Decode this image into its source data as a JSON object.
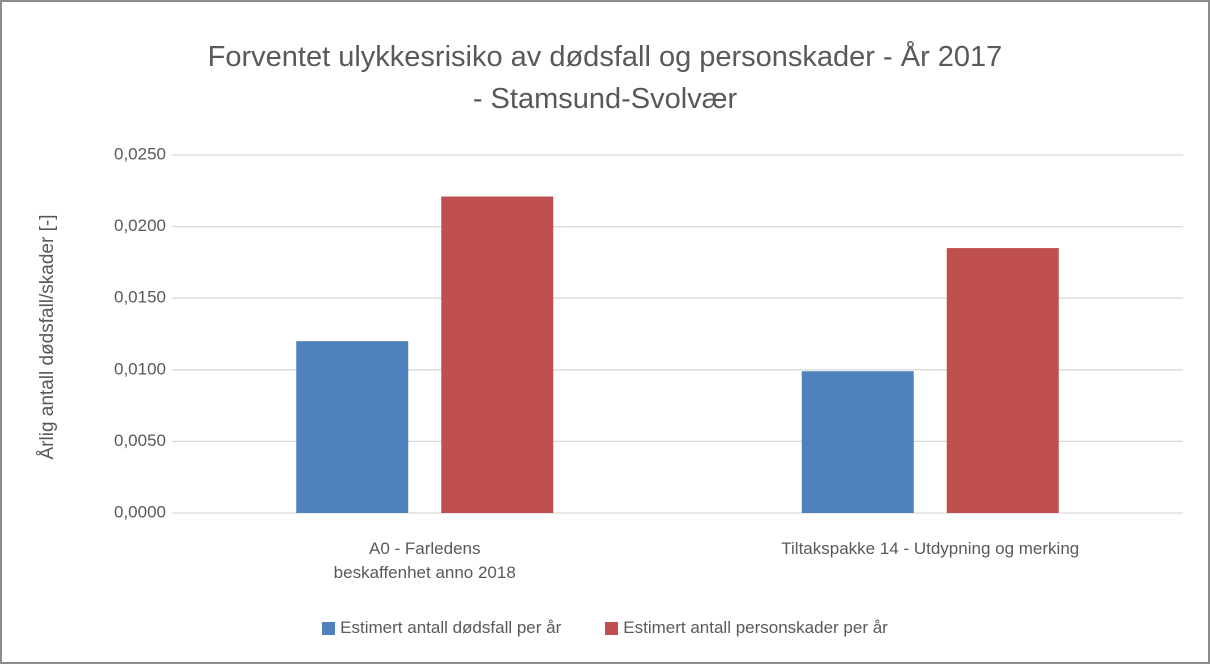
{
  "chart_data": {
    "type": "bar",
    "title": "Forventet ulykkesrisiko av dødsfall og personskader - År 2017\n- Stamsund-Svolvær",
    "y_label": "Årlig antall dødsfall/skader [-]",
    "categories": [
      "A0 - Farledens\nbeskaffenhet anno 2018",
      "Tiltakspakke 14 - Utdypning og merking"
    ],
    "series": [
      {
        "name": "Estimert antall dødsfall per år",
        "color": "#4f81bd",
        "values": [
          0.012,
          0.0099
        ]
      },
      {
        "name": "Estimert antall personskader per år",
        "color": "#c0504d",
        "values": [
          0.0221,
          0.0185
        ]
      }
    ],
    "ylim": [
      0,
      0.025
    ],
    "yticks": [
      {
        "value": 0,
        "label": "0,0000"
      },
      {
        "value": 0.005,
        "label": "0,0050"
      },
      {
        "value": 0.01,
        "label": "0,0100"
      },
      {
        "value": 0.015,
        "label": "0,0150"
      },
      {
        "value": 0.02,
        "label": "0,0200"
      },
      {
        "value": 0.025,
        "label": "0,0250"
      }
    ],
    "grid": true,
    "legend": "bottom"
  }
}
